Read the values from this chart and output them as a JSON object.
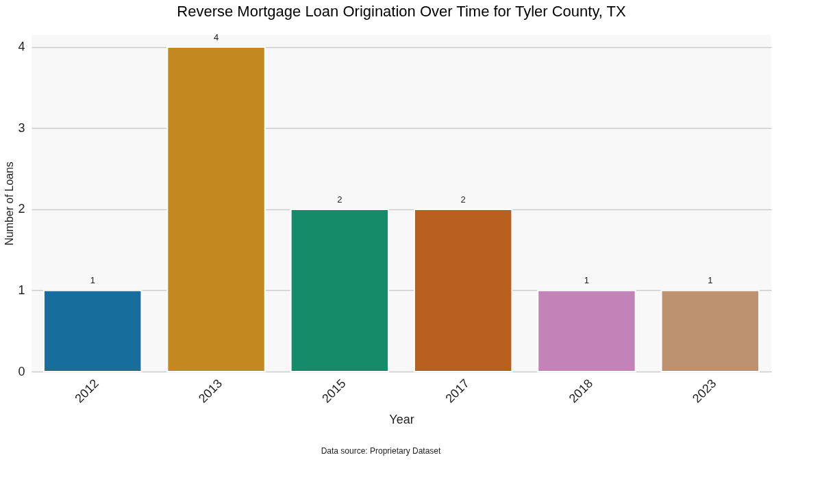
{
  "chart_data": {
    "type": "bar",
    "title": "Reverse Mortgage Loan Origination Over Time for Tyler County, TX",
    "xlabel": "Year",
    "ylabel": "Number of Loans",
    "categories": [
      "2012",
      "2013",
      "2015",
      "2017",
      "2018",
      "2023"
    ],
    "values": [
      1,
      4,
      2,
      2,
      1,
      1
    ],
    "colors": [
      "#176d9c",
      "#c38820",
      "#168b6a",
      "#b85f1e",
      "#c283b8",
      "#bc9270"
    ],
    "ylim": [
      0,
      4.15
    ],
    "yticks": [
      0,
      1,
      2,
      3,
      4
    ],
    "grid": "y",
    "data_labels": true,
    "legend": false,
    "annotations": [
      "Data source: Proprietary Dataset"
    ]
  }
}
